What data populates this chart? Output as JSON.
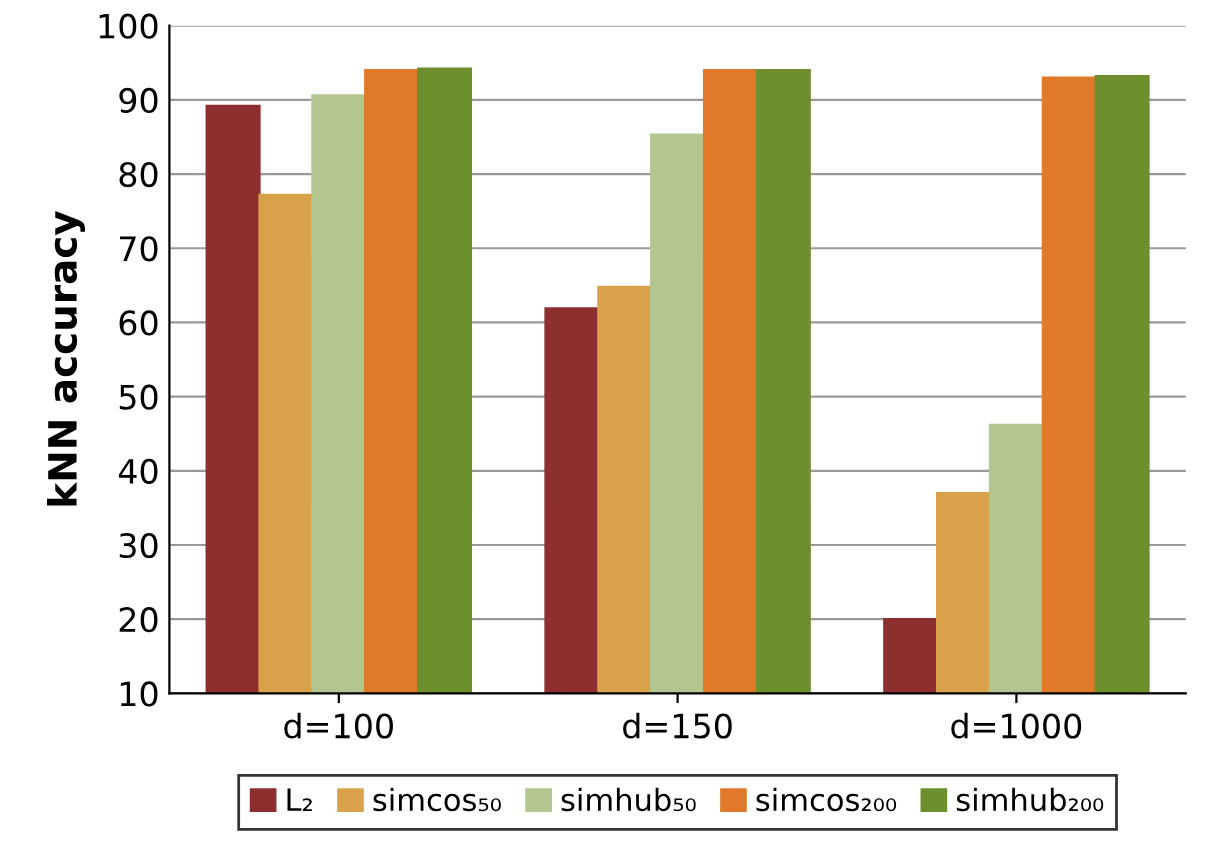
{
  "chart_data": {
    "type": "bar",
    "ylabel": "kNN accuracy",
    "categories": [
      "d=100",
      "d=150",
      "d=1000"
    ],
    "series": [
      {
        "name": "L₂",
        "color": "#8e2f2f",
        "values": [
          89.2,
          61.9,
          20.0
        ]
      },
      {
        "name": "simcos₅₀",
        "color": "#d9a24a",
        "values": [
          77.2,
          64.8,
          37.0
        ]
      },
      {
        "name": "simhub₅₀",
        "color": "#b4c690",
        "values": [
          90.6,
          85.3,
          46.2
        ]
      },
      {
        "name": "simcos₂₀₀",
        "color": "#e07a2a",
        "values": [
          94.0,
          94.0,
          93.0
        ]
      },
      {
        "name": "simhub₂₀₀",
        "color": "#6e8f2e",
        "values": [
          94.2,
          94.0,
          93.2
        ]
      }
    ],
    "ylim": [
      10,
      100
    ],
    "yticks": [
      10,
      20,
      30,
      40,
      50,
      60,
      70,
      80,
      90,
      100
    ],
    "grid": "y",
    "legend": "bottom"
  }
}
